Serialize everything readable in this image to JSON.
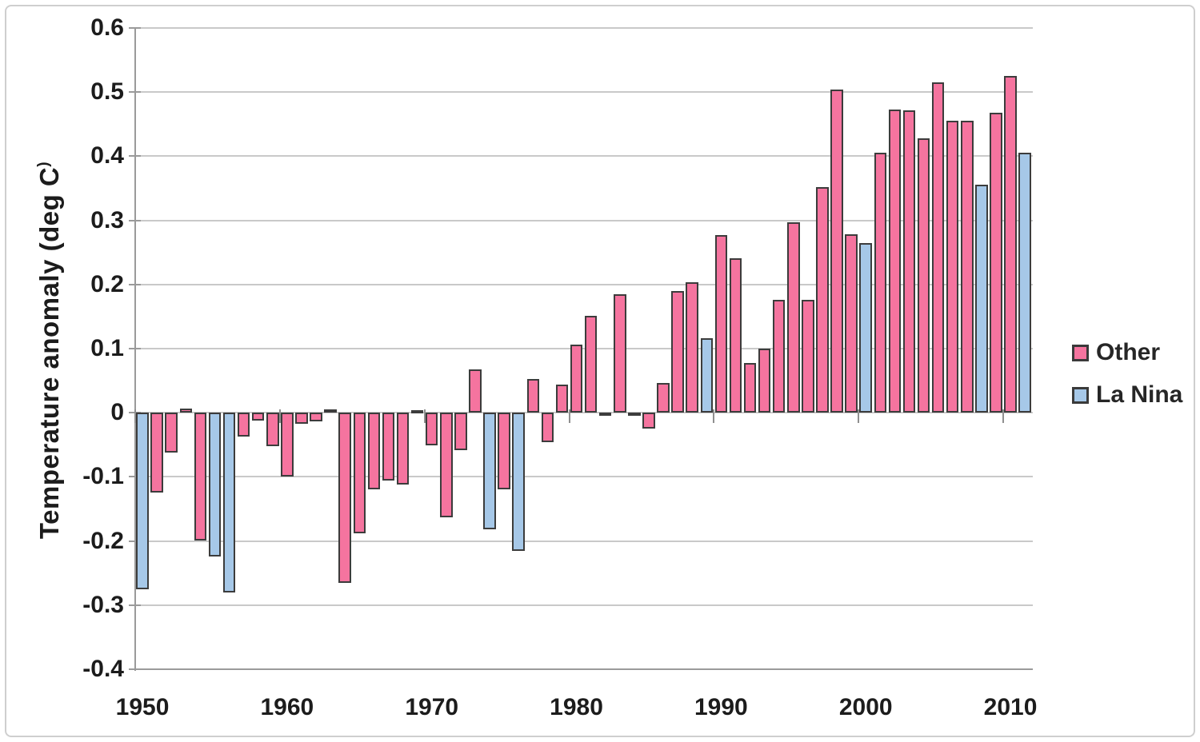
{
  "colors": {
    "other_fill": "#F5749F",
    "lanina_fill": "#A6C8E8",
    "bar_border": "#3C3C3C",
    "gridline": "#C9C9C9",
    "axis": "#9A9A9A",
    "text": "#1C1C1C"
  },
  "chart_data": {
    "type": "bar",
    "title": "",
    "xlabel": "",
    "ylabel": "Temperature anomaly (deg C",
    "ylabel_suffix": ")",
    "ylim": [
      -0.4,
      0.6
    ],
    "grid": true,
    "legend_position": "right",
    "yticks": [
      {
        "label": "0.6",
        "value": 0.6
      },
      {
        "label": "0.5",
        "value": 0.5
      },
      {
        "label": "0.4",
        "value": 0.4
      },
      {
        "label": "0.3",
        "value": 0.3
      },
      {
        "label": "0.2",
        "value": 0.2
      },
      {
        "label": "0.1",
        "value": 0.1
      },
      {
        "label": "0",
        "value": 0.0
      },
      {
        "label": "-0.1",
        "value": -0.1
      },
      {
        "label": "-0.2",
        "value": -0.2
      },
      {
        "label": "-0.3",
        "value": -0.3
      },
      {
        "label": "-0.4",
        "value": -0.4
      }
    ],
    "xticks": [
      {
        "label": "1950",
        "year": 1950
      },
      {
        "label": "1960",
        "year": 1960
      },
      {
        "label": "1970",
        "year": 1970
      },
      {
        "label": "1980",
        "year": 1980
      },
      {
        "label": "1990",
        "year": 1990
      },
      {
        "label": "2000",
        "year": 2000
      },
      {
        "label": "2010",
        "year": 2010
      }
    ],
    "legend": [
      {
        "label": "Other",
        "group": "Other",
        "color": "#F5749F"
      },
      {
        "label": "La Nina",
        "group": "La Nina",
        "color": "#A6C8E8"
      }
    ],
    "bars": [
      {
        "year": 1950,
        "value": -0.275,
        "group": "La Nina"
      },
      {
        "year": 1951,
        "value": -0.125,
        "group": "Other"
      },
      {
        "year": 1952,
        "value": -0.062,
        "group": "Other"
      },
      {
        "year": 1953,
        "value": 0.006,
        "group": "Other"
      },
      {
        "year": 1954,
        "value": -0.199,
        "group": "Other"
      },
      {
        "year": 1955,
        "value": -0.224,
        "group": "La Nina"
      },
      {
        "year": 1956,
        "value": -0.28,
        "group": "La Nina"
      },
      {
        "year": 1957,
        "value": -0.037,
        "group": "Other"
      },
      {
        "year": 1958,
        "value": -0.012,
        "group": "Other"
      },
      {
        "year": 1959,
        "value": -0.052,
        "group": "Other"
      },
      {
        "year": 1960,
        "value": -0.1,
        "group": "Other"
      },
      {
        "year": 1961,
        "value": -0.017,
        "group": "Other"
      },
      {
        "year": 1962,
        "value": -0.014,
        "group": "Other"
      },
      {
        "year": 1963,
        "value": 0.005,
        "group": "Other"
      },
      {
        "year": 1964,
        "value": -0.265,
        "group": "Other"
      },
      {
        "year": 1965,
        "value": -0.188,
        "group": "Other"
      },
      {
        "year": 1966,
        "value": -0.119,
        "group": "Other"
      },
      {
        "year": 1967,
        "value": -0.106,
        "group": "Other"
      },
      {
        "year": 1968,
        "value": -0.112,
        "group": "Other"
      },
      {
        "year": 1969,
        "value": 0.004,
        "group": "Other"
      },
      {
        "year": 1970,
        "value": -0.051,
        "group": "Other"
      },
      {
        "year": 1971,
        "value": -0.163,
        "group": "Other"
      },
      {
        "year": 1972,
        "value": -0.058,
        "group": "Other"
      },
      {
        "year": 1973,
        "value": 0.067,
        "group": "Other"
      },
      {
        "year": 1974,
        "value": -0.182,
        "group": "La Nina"
      },
      {
        "year": 1975,
        "value": -0.12,
        "group": "Other"
      },
      {
        "year": 1976,
        "value": -0.215,
        "group": "La Nina"
      },
      {
        "year": 1977,
        "value": 0.053,
        "group": "Other"
      },
      {
        "year": 1978,
        "value": -0.046,
        "group": "Other"
      },
      {
        "year": 1979,
        "value": 0.044,
        "group": "Other"
      },
      {
        "year": 1980,
        "value": 0.106,
        "group": "Other"
      },
      {
        "year": 1981,
        "value": 0.151,
        "group": "Other"
      },
      {
        "year": 1982,
        "value": -0.005,
        "group": "Other"
      },
      {
        "year": 1983,
        "value": 0.185,
        "group": "Other"
      },
      {
        "year": 1984,
        "value": -0.005,
        "group": "Other"
      },
      {
        "year": 1985,
        "value": -0.025,
        "group": "Other"
      },
      {
        "year": 1986,
        "value": 0.047,
        "group": "Other"
      },
      {
        "year": 1987,
        "value": 0.19,
        "group": "Other"
      },
      {
        "year": 1988,
        "value": 0.203,
        "group": "Other"
      },
      {
        "year": 1989,
        "value": 0.116,
        "group": "La Nina"
      },
      {
        "year": 1990,
        "value": 0.277,
        "group": "Other"
      },
      {
        "year": 1991,
        "value": 0.241,
        "group": "Other"
      },
      {
        "year": 1992,
        "value": 0.077,
        "group": "Other"
      },
      {
        "year": 1993,
        "value": 0.1,
        "group": "Other"
      },
      {
        "year": 1994,
        "value": 0.176,
        "group": "Other"
      },
      {
        "year": 1995,
        "value": 0.297,
        "group": "Other"
      },
      {
        "year": 1996,
        "value": 0.176,
        "group": "Other"
      },
      {
        "year": 1997,
        "value": 0.352,
        "group": "Other"
      },
      {
        "year": 1998,
        "value": 0.504,
        "group": "Other"
      },
      {
        "year": 1999,
        "value": 0.278,
        "group": "Other"
      },
      {
        "year": 2000,
        "value": 0.264,
        "group": "La Nina"
      },
      {
        "year": 2001,
        "value": 0.405,
        "group": "Other"
      },
      {
        "year": 2002,
        "value": 0.473,
        "group": "Other"
      },
      {
        "year": 2003,
        "value": 0.472,
        "group": "Other"
      },
      {
        "year": 2004,
        "value": 0.428,
        "group": "Other"
      },
      {
        "year": 2005,
        "value": 0.515,
        "group": "Other"
      },
      {
        "year": 2006,
        "value": 0.455,
        "group": "Other"
      },
      {
        "year": 2007,
        "value": 0.455,
        "group": "Other"
      },
      {
        "year": 2008,
        "value": 0.356,
        "group": "La Nina"
      },
      {
        "year": 2009,
        "value": 0.468,
        "group": "Other"
      },
      {
        "year": 2010,
        "value": 0.525,
        "group": "Other"
      },
      {
        "year": 2011,
        "value": 0.405,
        "group": "La Nina"
      }
    ]
  }
}
